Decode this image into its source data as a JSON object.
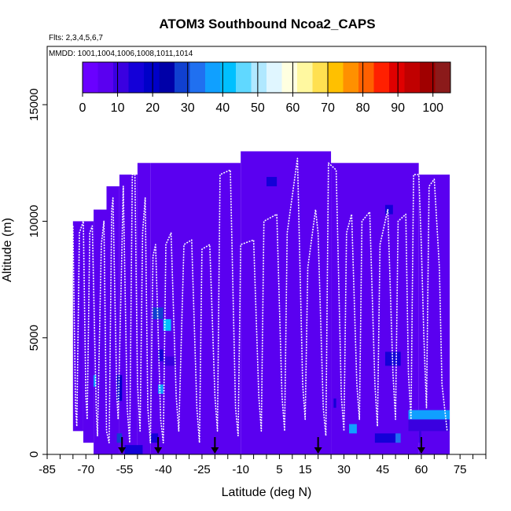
{
  "chart_data": {
    "type": "heatmap",
    "title": "ATOM3 Southbound Ncoa2_CAPS",
    "flights_label": "Flts: 2,3,4,5,6,7",
    "dates_label": "MMDD: 1001,1004,1006,1008,1011,1014",
    "xlabel": "Latitude (deg N)",
    "ylabel": "Altitude (m)",
    "xlim": [
      -85,
      85
    ],
    "ylim": [
      0,
      17500
    ],
    "x_ticks": [
      -85,
      -70,
      -55,
      -40,
      -25,
      -10,
      5,
      15,
      30,
      45,
      60,
      75
    ],
    "y_ticks": [
      0,
      5000,
      10000,
      15000
    ],
    "colorbar": {
      "min": 0,
      "max": 105,
      "ticks": [
        0,
        10,
        20,
        30,
        40,
        50,
        60,
        70,
        80,
        90,
        100
      ],
      "colors": [
        "#6a00ff",
        "#5a00f0",
        "#3a00e0",
        "#1400d8",
        "#0000c8",
        "#0000a8",
        "#1040d0",
        "#2070f0",
        "#10a0ff",
        "#00c0ff",
        "#60d8ff",
        "#b0e8ff",
        "#e0f6ff",
        "#ffffe0",
        "#fff8a0",
        "#ffe050",
        "#ffc000",
        "#ff9000",
        "#ff6000",
        "#ff2000",
        "#e00000",
        "#c00000",
        "#a00000",
        "#8b1a1a"
      ]
    },
    "background_value": 5,
    "curtain_segments": [
      {
        "x0": -75,
        "x1": -71,
        "y0": 1000,
        "y1": 10000
      },
      {
        "x0": -71,
        "x1": -67,
        "y0": 500,
        "y1": 10000
      },
      {
        "x0": -67,
        "x1": -62,
        "y0": 0,
        "y1": 10500
      },
      {
        "x0": -62,
        "x1": -57,
        "y0": 0,
        "y1": 11500
      },
      {
        "x0": -57,
        "x1": -50,
        "y0": 0,
        "y1": 12000
      },
      {
        "x0": -50,
        "x1": -45,
        "y0": 0,
        "y1": 12500
      },
      {
        "x0": -45,
        "x1": -10,
        "y0": 0,
        "y1": 12500
      },
      {
        "x0": -10,
        "x1": 25,
        "y0": 0,
        "y1": 13000
      },
      {
        "x0": 25,
        "x1": 59,
        "y0": 0,
        "y1": 12500
      },
      {
        "x0": 59,
        "x1": 71,
        "y0": 0,
        "y1": 12000
      }
    ],
    "hotspots": [
      {
        "x0": -44,
        "x1": -40,
        "y0": 5800,
        "y1": 6300,
        "v": 30
      },
      {
        "x0": -40,
        "x1": -37,
        "y0": 5300,
        "y1": 5800,
        "v": 40
      },
      {
        "x0": -42,
        "x1": -40,
        "y0": 4000,
        "y1": 4500,
        "v": 15
      },
      {
        "x0": -40,
        "x1": -35,
        "y0": 3800,
        "y1": 4200,
        "v": 12
      },
      {
        "x0": -42,
        "x1": -40,
        "y0": 2600,
        "y1": 3000,
        "v": 35
      },
      {
        "x0": -67,
        "x1": -66,
        "y0": 2900,
        "y1": 3400,
        "v": 35
      },
      {
        "x0": -58,
        "x1": -56,
        "y0": 2300,
        "y1": 3400,
        "v": 18
      },
      {
        "x0": -58,
        "x1": -56,
        "y0": 500,
        "y1": 900,
        "v": 30
      },
      {
        "x0": -45,
        "x1": -42,
        "y0": 500,
        "y1": 900,
        "v": 15
      },
      {
        "x0": -55,
        "x1": -48,
        "y0": 0,
        "y1": 400,
        "v": 14
      },
      {
        "x0": 32,
        "x1": 35,
        "y0": 900,
        "y1": 1300,
        "v": 35
      },
      {
        "x0": 42,
        "x1": 50,
        "y0": 500,
        "y1": 900,
        "v": 14
      },
      {
        "x0": 50,
        "x1": 52,
        "y0": 500,
        "y1": 900,
        "v": 33
      },
      {
        "x0": 46,
        "x1": 52,
        "y0": 3800,
        "y1": 4400,
        "v": 14
      },
      {
        "x0": 55,
        "x1": 71,
        "y0": 1500,
        "y1": 1900,
        "v": 38
      },
      {
        "x0": 55,
        "x1": 71,
        "y0": 1000,
        "y1": 1500,
        "v": 9
      },
      {
        "x0": 59,
        "x1": 60,
        "y0": 500,
        "y1": 1000,
        "v": 12
      },
      {
        "x0": 26,
        "x1": 27,
        "y0": 2000,
        "y1": 2400,
        "v": 15
      },
      {
        "x0": 0,
        "x1": 4,
        "y0": 11500,
        "y1": 11900,
        "v": 15
      },
      {
        "x0": 46,
        "x1": 49,
        "y0": 10300,
        "y1": 10700,
        "v": 14
      }
    ],
    "flight_track": [
      [
        -75,
        9800
      ],
      [
        -74,
        2000
      ],
      [
        -73.5,
        1200
      ],
      [
        -72.5,
        9500
      ],
      [
        -71,
        10000
      ],
      [
        -70,
        2500
      ],
      [
        -69.5,
        1500
      ],
      [
        -68.5,
        9500
      ],
      [
        -67.5,
        9800
      ],
      [
        -66,
        2000
      ],
      [
        -65.5,
        800
      ],
      [
        -64,
        9000
      ],
      [
        -63,
        10000
      ],
      [
        -62,
        1000
      ],
      [
        -61,
        500
      ],
      [
        -60,
        10500
      ],
      [
        -59.5,
        11000
      ],
      [
        -58,
        2500
      ],
      [
        -57.5,
        1500
      ],
      [
        -56,
        9000
      ],
      [
        -55.5,
        11500
      ],
      [
        -54,
        2000
      ],
      [
        -53,
        500
      ],
      [
        -52,
        12000
      ],
      [
        -51,
        12000
      ],
      [
        -50,
        3000
      ],
      [
        -49,
        1000
      ],
      [
        -48,
        9500
      ],
      [
        -47,
        11000
      ],
      [
        -46,
        2000
      ],
      [
        -45,
        500
      ],
      [
        -44,
        8500
      ],
      [
        -43,
        9000
      ],
      [
        -41,
        1500
      ],
      [
        -40,
        500
      ],
      [
        -39,
        9000
      ],
      [
        -37,
        9500
      ],
      [
        -35,
        2500
      ],
      [
        -34,
        1000
      ],
      [
        -32,
        9000
      ],
      [
        -29,
        9200
      ],
      [
        -27,
        2000
      ],
      [
        -26,
        500
      ],
      [
        -25,
        8800
      ],
      [
        -22,
        9000
      ],
      [
        -20,
        2500
      ],
      [
        -19,
        1000
      ],
      [
        -18,
        12000
      ],
      [
        -14,
        12200
      ],
      [
        -12,
        2000
      ],
      [
        -11,
        800
      ],
      [
        -10,
        9000
      ],
      [
        -5,
        9200
      ],
      [
        -3,
        2500
      ],
      [
        -2,
        1000
      ],
      [
        -1,
        10000
      ],
      [
        4,
        10300
      ],
      [
        6,
        2500
      ],
      [
        7,
        1000
      ],
      [
        8,
        9500
      ],
      [
        12,
        12700
      ],
      [
        14,
        3000
      ],
      [
        15,
        1500
      ],
      [
        16,
        8000
      ],
      [
        19,
        10500
      ],
      [
        20,
        9500
      ],
      [
        22,
        2000
      ],
      [
        23,
        800
      ],
      [
        24,
        12500
      ],
      [
        27,
        12200
      ],
      [
        29,
        2500
      ],
      [
        30,
        1000
      ],
      [
        31,
        9500
      ],
      [
        33,
        10300
      ],
      [
        35,
        3000
      ],
      [
        36,
        1500
      ],
      [
        37,
        10000
      ],
      [
        40,
        10400
      ],
      [
        42,
        3000
      ],
      [
        43,
        1200
      ],
      [
        44,
        9000
      ],
      [
        47,
        10500
      ],
      [
        49,
        3500
      ],
      [
        50,
        1500
      ],
      [
        51,
        10000
      ],
      [
        54,
        10300
      ],
      [
        55,
        3500
      ],
      [
        56,
        1500
      ],
      [
        57,
        12000
      ],
      [
        59,
        12000
      ],
      [
        60,
        9000
      ],
      [
        61,
        5000
      ],
      [
        62,
        2000
      ],
      [
        63,
        11500
      ],
      [
        65,
        11800
      ],
      [
        67,
        8000
      ],
      [
        68,
        3000
      ],
      [
        70,
        1000
      ]
    ],
    "flight_arrows_lat": [
      -56,
      -42,
      -20,
      20,
      60
    ]
  }
}
